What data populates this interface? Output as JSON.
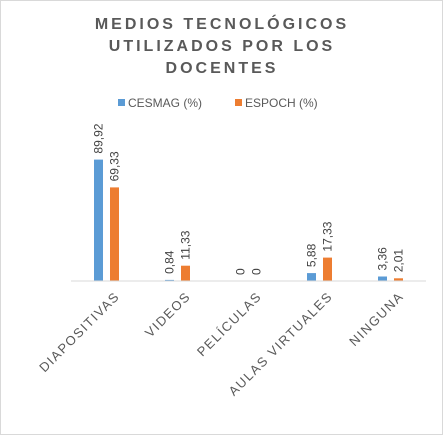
{
  "chart_data": {
    "type": "bar",
    "title_lines": [
      "MEDIOS TECNOLÓGICOS",
      "UTILIZADOS POR LOS",
      "DOCENTES"
    ],
    "categories": [
      "DIAPOSITIVAS",
      "VIDEOS",
      "PELÍCULAS",
      "AULAS VIRTUALES",
      "NINGUNA"
    ],
    "series": [
      {
        "name": "CESMAG (%)",
        "color": "#5b9bd5",
        "values": [
          89.92,
          0.84,
          0,
          5.88,
          3.36
        ],
        "labels": [
          "89,92",
          "0,84",
          "0",
          "5,88",
          "3,36"
        ]
      },
      {
        "name": "ESPOCH (%)",
        "color": "#ed7d31",
        "values": [
          69.33,
          11.33,
          0,
          17.33,
          2.01
        ],
        "labels": [
          "69,33",
          "11,33",
          "0",
          "17,33",
          "2,01"
        ]
      }
    ],
    "ylim": [
      0,
      100
    ],
    "grid": false,
    "legend_position": "top",
    "axis_color": "#d9d9d9"
  }
}
